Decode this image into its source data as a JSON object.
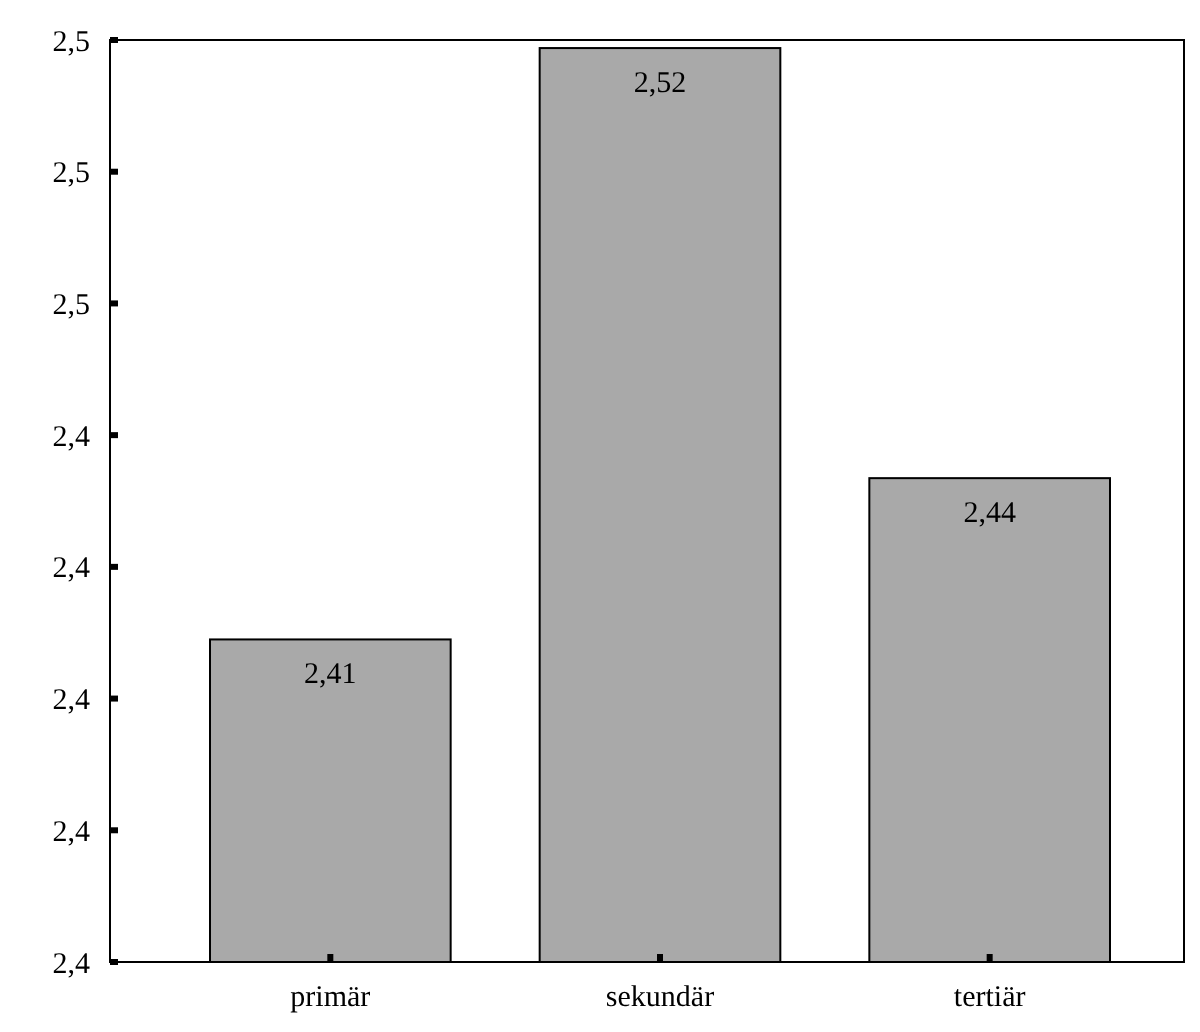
{
  "chart_data": {
    "type": "bar",
    "categories": [
      "primär",
      "sekundär",
      "tertiär"
    ],
    "values": [
      2.41,
      2.52,
      2.44
    ],
    "value_labels": [
      "2,41",
      "2,52",
      "2,44"
    ],
    "color": "#a9a9a9",
    "ylim": [
      2.35,
      2.5215
    ],
    "yticks": [
      {
        "value": 2.35,
        "label": "2,4"
      },
      {
        "value": 2.3745,
        "label": "2,4"
      },
      {
        "value": 2.399,
        "label": "2,4"
      },
      {
        "value": 2.4235,
        "label": "2,4"
      },
      {
        "value": 2.448,
        "label": "2,4"
      },
      {
        "value": 2.4725,
        "label": "2,5"
      },
      {
        "value": 2.497,
        "label": "2,5"
      },
      {
        "value": 2.5215,
        "label": "2,5"
      }
    ],
    "grid": false
  }
}
